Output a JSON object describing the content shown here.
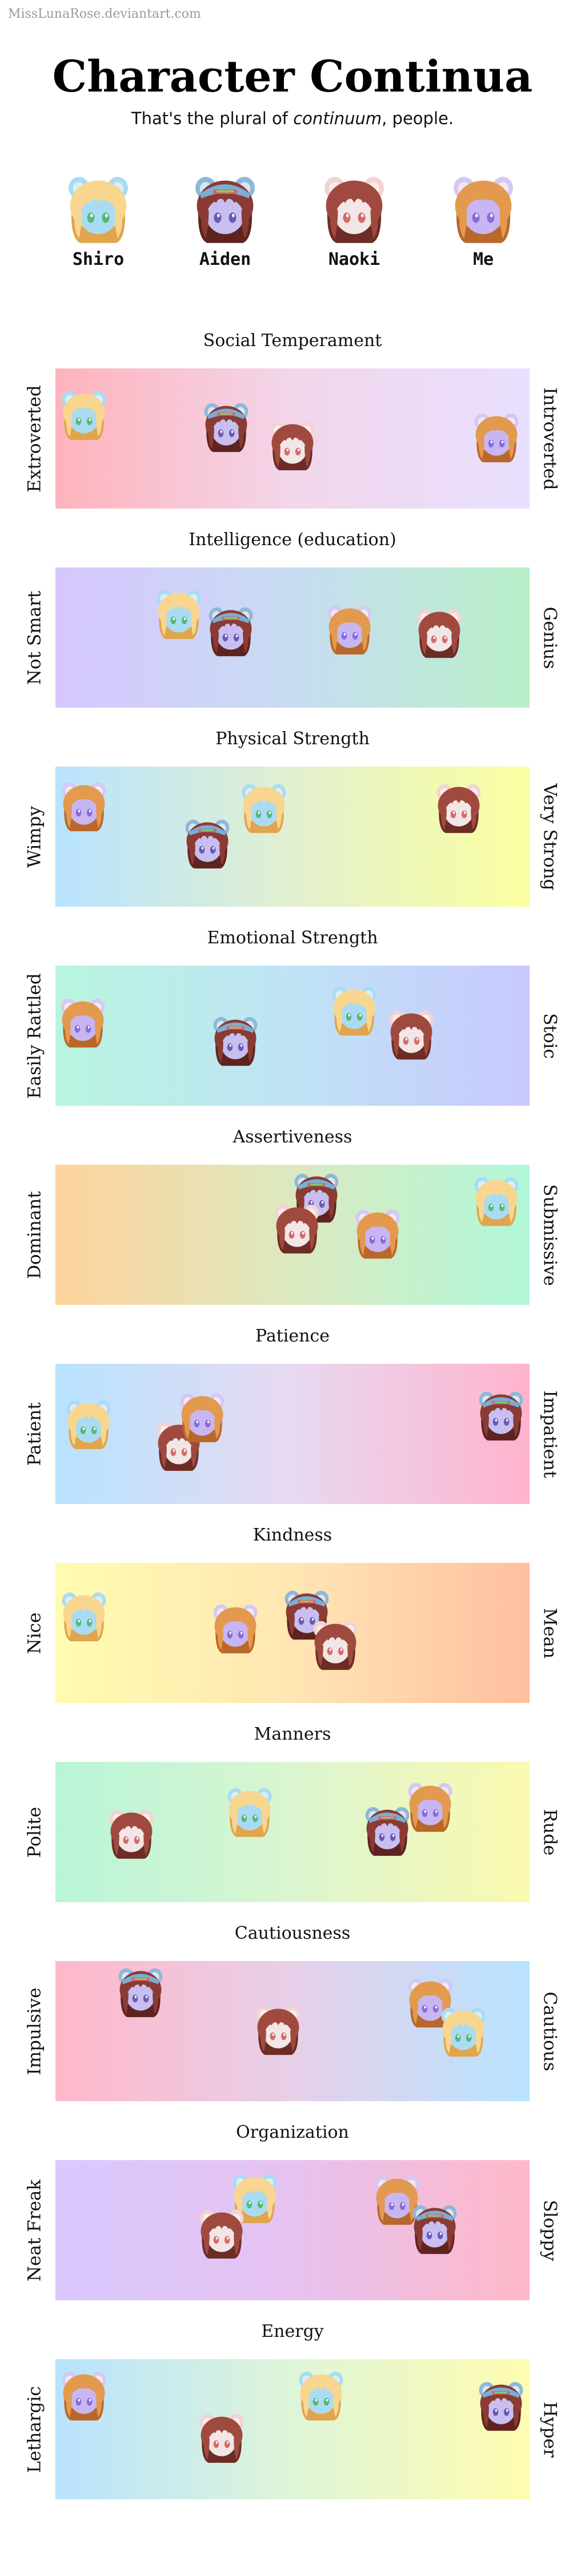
{
  "watermark": "MissLunaRose.deviantart.com",
  "title": "Character Continua",
  "subtitle": {
    "before": "That's the plural of ",
    "emphasis": "continuum",
    "after": ", people."
  },
  "characters": [
    {
      "id": "shiro",
      "name": "Shiro",
      "hair": "#f8d68f",
      "hair_dark": "#e0a54d",
      "face": "#a9dcf2",
      "eye": "#58b87a",
      "ear": "#a9dcf2",
      "ear_inner": "#d9eef8",
      "accessory": "none"
    },
    {
      "id": "aiden",
      "name": "Aiden",
      "hair": "#8a3b33",
      "hair_dark": "#5f231f",
      "face": "#c8bff0",
      "eye": "#6a5ab5",
      "ear": "#8fb8d8",
      "ear_inner": "#d6e6f4",
      "accessory": "cap"
    },
    {
      "id": "naoki",
      "name": "Naoki",
      "hair": "#a04a3f",
      "hair_dark": "#6d2c25",
      "face": "#f2e6e6",
      "eye": "#d56b6b",
      "ear": "#f3d3d3",
      "ear_inner": "#fbecec",
      "accessory": "none"
    },
    {
      "id": "me",
      "name": "Me",
      "hair": "#e39a4e",
      "hair_dark": "#b9672a",
      "face": "#c8b6f2",
      "eye": "#8a6bd9",
      "ear": "#d5c8f2",
      "ear_inner": "#efe8fb",
      "accessory": "bangs"
    }
  ],
  "scales": [
    {
      "title": "Social Temperament",
      "left": "Extroverted",
      "right": "Introverted",
      "gradient": [
        "#ffb3bc",
        "#f2d6ea",
        "#e8e0ff"
      ],
      "positions": {
        "shiro": 0.06,
        "aiden": 0.36,
        "naoki": 0.5,
        "me": 0.93
      }
    },
    {
      "title": "Intelligence (education)",
      "left": "Not Smart",
      "right": "Genius",
      "gradient": [
        "#d7c7ff",
        "#c7dcf2",
        "#b8f0c8"
      ],
      "positions": {
        "shiro": 0.26,
        "aiden": 0.37,
        "naoki": 0.81,
        "me": 0.62
      }
    },
    {
      "title": "Physical Strength",
      "left": "Wimpy",
      "right": "Very Strong",
      "gradient": [
        "#b8e3ff",
        "#e2f0cf",
        "#fbffa0"
      ],
      "positions": {
        "me": 0.06,
        "aiden": 0.32,
        "shiro": 0.44,
        "naoki": 0.85
      }
    },
    {
      "title": "Emotional Strength",
      "left": "Easily Rattled",
      "right": "Stoic",
      "gradient": [
        "#b8f5e0",
        "#bfe3f5",
        "#c9c9ff"
      ],
      "positions": {
        "me": 0.05,
        "aiden": 0.38,
        "shiro": 0.63,
        "naoki": 0.75
      }
    },
    {
      "title": "Assertiveness",
      "left": "Dominant",
      "right": "Submissive",
      "gradient": [
        "#ffd39c",
        "#dce9c0",
        "#b0f7d9"
      ],
      "positions": {
        "aiden": 0.55,
        "naoki": 0.51,
        "me": 0.68,
        "shiro": 0.93
      }
    },
    {
      "title": "Patience",
      "left": "Patient",
      "right": "Impatient",
      "gradient": [
        "#b8e3ff",
        "#e7d9f0",
        "#ffb3cd"
      ],
      "positions": {
        "shiro": 0.07,
        "naoki": 0.26,
        "me": 0.31,
        "aiden": 0.94
      }
    },
    {
      "title": "Kindness",
      "left": "Nice",
      "right": "Mean",
      "gradient": [
        "#fffcb0",
        "#ffe6b3",
        "#ffbfa0"
      ],
      "positions": {
        "shiro": 0.06,
        "me": 0.38,
        "aiden": 0.53,
        "naoki": 0.59
      }
    },
    {
      "title": "Manners",
      "left": "Polite",
      "right": "Rude",
      "gradient": [
        "#b8f5d8",
        "#dbf5d0",
        "#fbf9b0"
      ],
      "positions": {
        "naoki": 0.16,
        "shiro": 0.41,
        "aiden": 0.7,
        "me": 0.79
      }
    },
    {
      "title": "Cautiousness",
      "left": "Impulsive",
      "right": "Cautious",
      "gradient": [
        "#ffb8ca",
        "#e7cfe8",
        "#b8e3ff"
      ],
      "positions": {
        "aiden": 0.18,
        "naoki": 0.47,
        "me": 0.79,
        "shiro": 0.86
      }
    },
    {
      "title": "Organization",
      "left": "Neat Freak",
      "right": "Sloppy",
      "gradient": [
        "#d9c9ff",
        "#e6c2f0",
        "#ffb8c8"
      ],
      "positions": {
        "shiro": 0.42,
        "naoki": 0.35,
        "me": 0.72,
        "aiden": 0.8
      }
    },
    {
      "title": "Energy",
      "left": "Lethargic",
      "right": "Hyper",
      "gradient": [
        "#b8e3ff",
        "#dff5d8",
        "#fffcb0"
      ],
      "positions": {
        "me": 0.06,
        "naoki": 0.35,
        "shiro": 0.56,
        "aiden": 0.94
      }
    }
  ]
}
